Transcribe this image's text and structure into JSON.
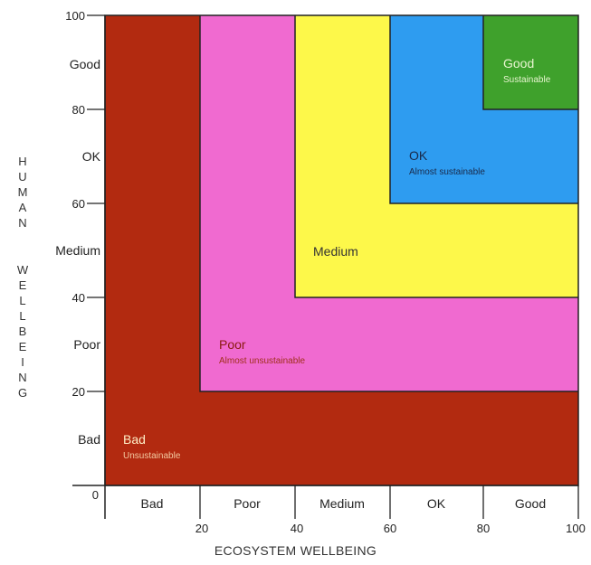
{
  "y_axis_title": "HUMAN WELLBEING",
  "x_axis_title": "ECOSYSTEM WELLBEING",
  "origin_label": "0",
  "ticks": [
    "20",
    "40",
    "60",
    "80",
    "100"
  ],
  "y_band_labels": [
    "Bad",
    "Poor",
    "Medium",
    "OK",
    "Good"
  ],
  "x_band_labels": [
    "Bad",
    "Poor",
    "Medium",
    "OK",
    "Good"
  ],
  "zones": [
    {
      "name": "Bad",
      "sub": "Unsustainable",
      "color": "#b22a10",
      "name_color": "#fff0c8",
      "sub_color": "#f3c9a0"
    },
    {
      "name": "Poor",
      "sub": "Almost unsustainable",
      "color": "#f06ad0",
      "name_color": "#8a1a10",
      "sub_color": "#a0301c"
    },
    {
      "name": "Medium",
      "sub": "",
      "color": "#fdf84a",
      "name_color": "#333333",
      "sub_color": "#333333"
    },
    {
      "name": "OK",
      "sub": "Almost sustainable",
      "color": "#2e9cf0",
      "name_color": "#1a2a4a",
      "sub_color": "#1a2a4a"
    },
    {
      "name": "Good",
      "sub": "Sustainable",
      "color": "#3fa12c",
      "name_color": "#e8f5d0",
      "sub_color": "#e8f5d0"
    }
  ]
}
